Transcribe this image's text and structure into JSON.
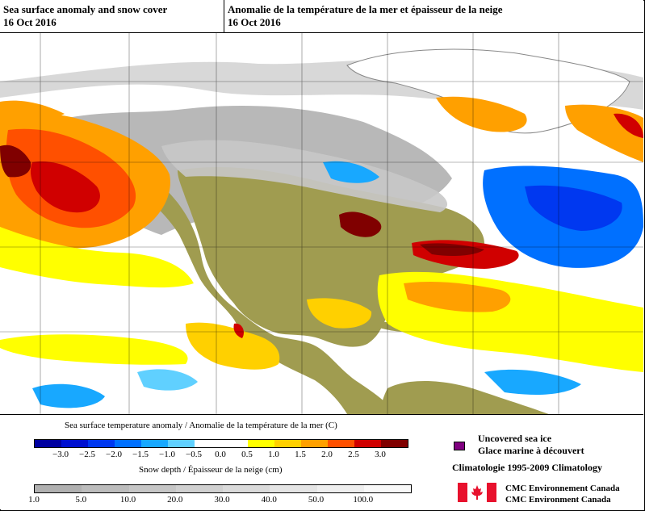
{
  "header": {
    "title_en": "Sea surface anomaly and snow cover",
    "date_en": "16 Oct 2016",
    "title_fr": "Anomalie de la température de la mer et épaisseur de la neige",
    "date_fr": "16 Oct 2016"
  },
  "sst_legend": {
    "title": "Sea surface temperature anomaly / Anomalie de la température de la mer (C)",
    "ticks": [
      "−3.0",
      "−2.5",
      "−2.0",
      "−1.5",
      "−1.0",
      "−0.5",
      "0.0",
      "0.5",
      "1.0",
      "1.5",
      "2.0",
      "2.5",
      "3.0"
    ],
    "colors": [
      "#0000a0",
      "#0010d0",
      "#0038f0",
      "#0070ff",
      "#18a8ff",
      "#60d0ff",
      "#ffffff",
      "#ffffff",
      "#ffff00",
      "#ffd000",
      "#ffa000",
      "#ff5000",
      "#d00000",
      "#800000"
    ]
  },
  "snow_legend": {
    "title": "Snow depth / Épaisseur de la neige (cm)",
    "ticks": [
      "1.0",
      "5.0",
      "10.0",
      "20.0",
      "30.0",
      "40.0",
      "50.0",
      "100.0"
    ]
  },
  "sea_ice": {
    "label_en": "Uncovered sea ice",
    "label_fr": "Glace marine à découvert",
    "color": "#800080"
  },
  "climatology": "Climatologie 1995-2009 Climatology",
  "credit": {
    "line1": "CMC Environnement Canada",
    "line2": "CMC Environment Canada"
  },
  "colors": {
    "land": "#a09c50",
    "snow_light": "#d8d8d8",
    "snow_dark": "#9a9a9a",
    "ice": "#ffffff",
    "flag_red": "#e8112d"
  }
}
